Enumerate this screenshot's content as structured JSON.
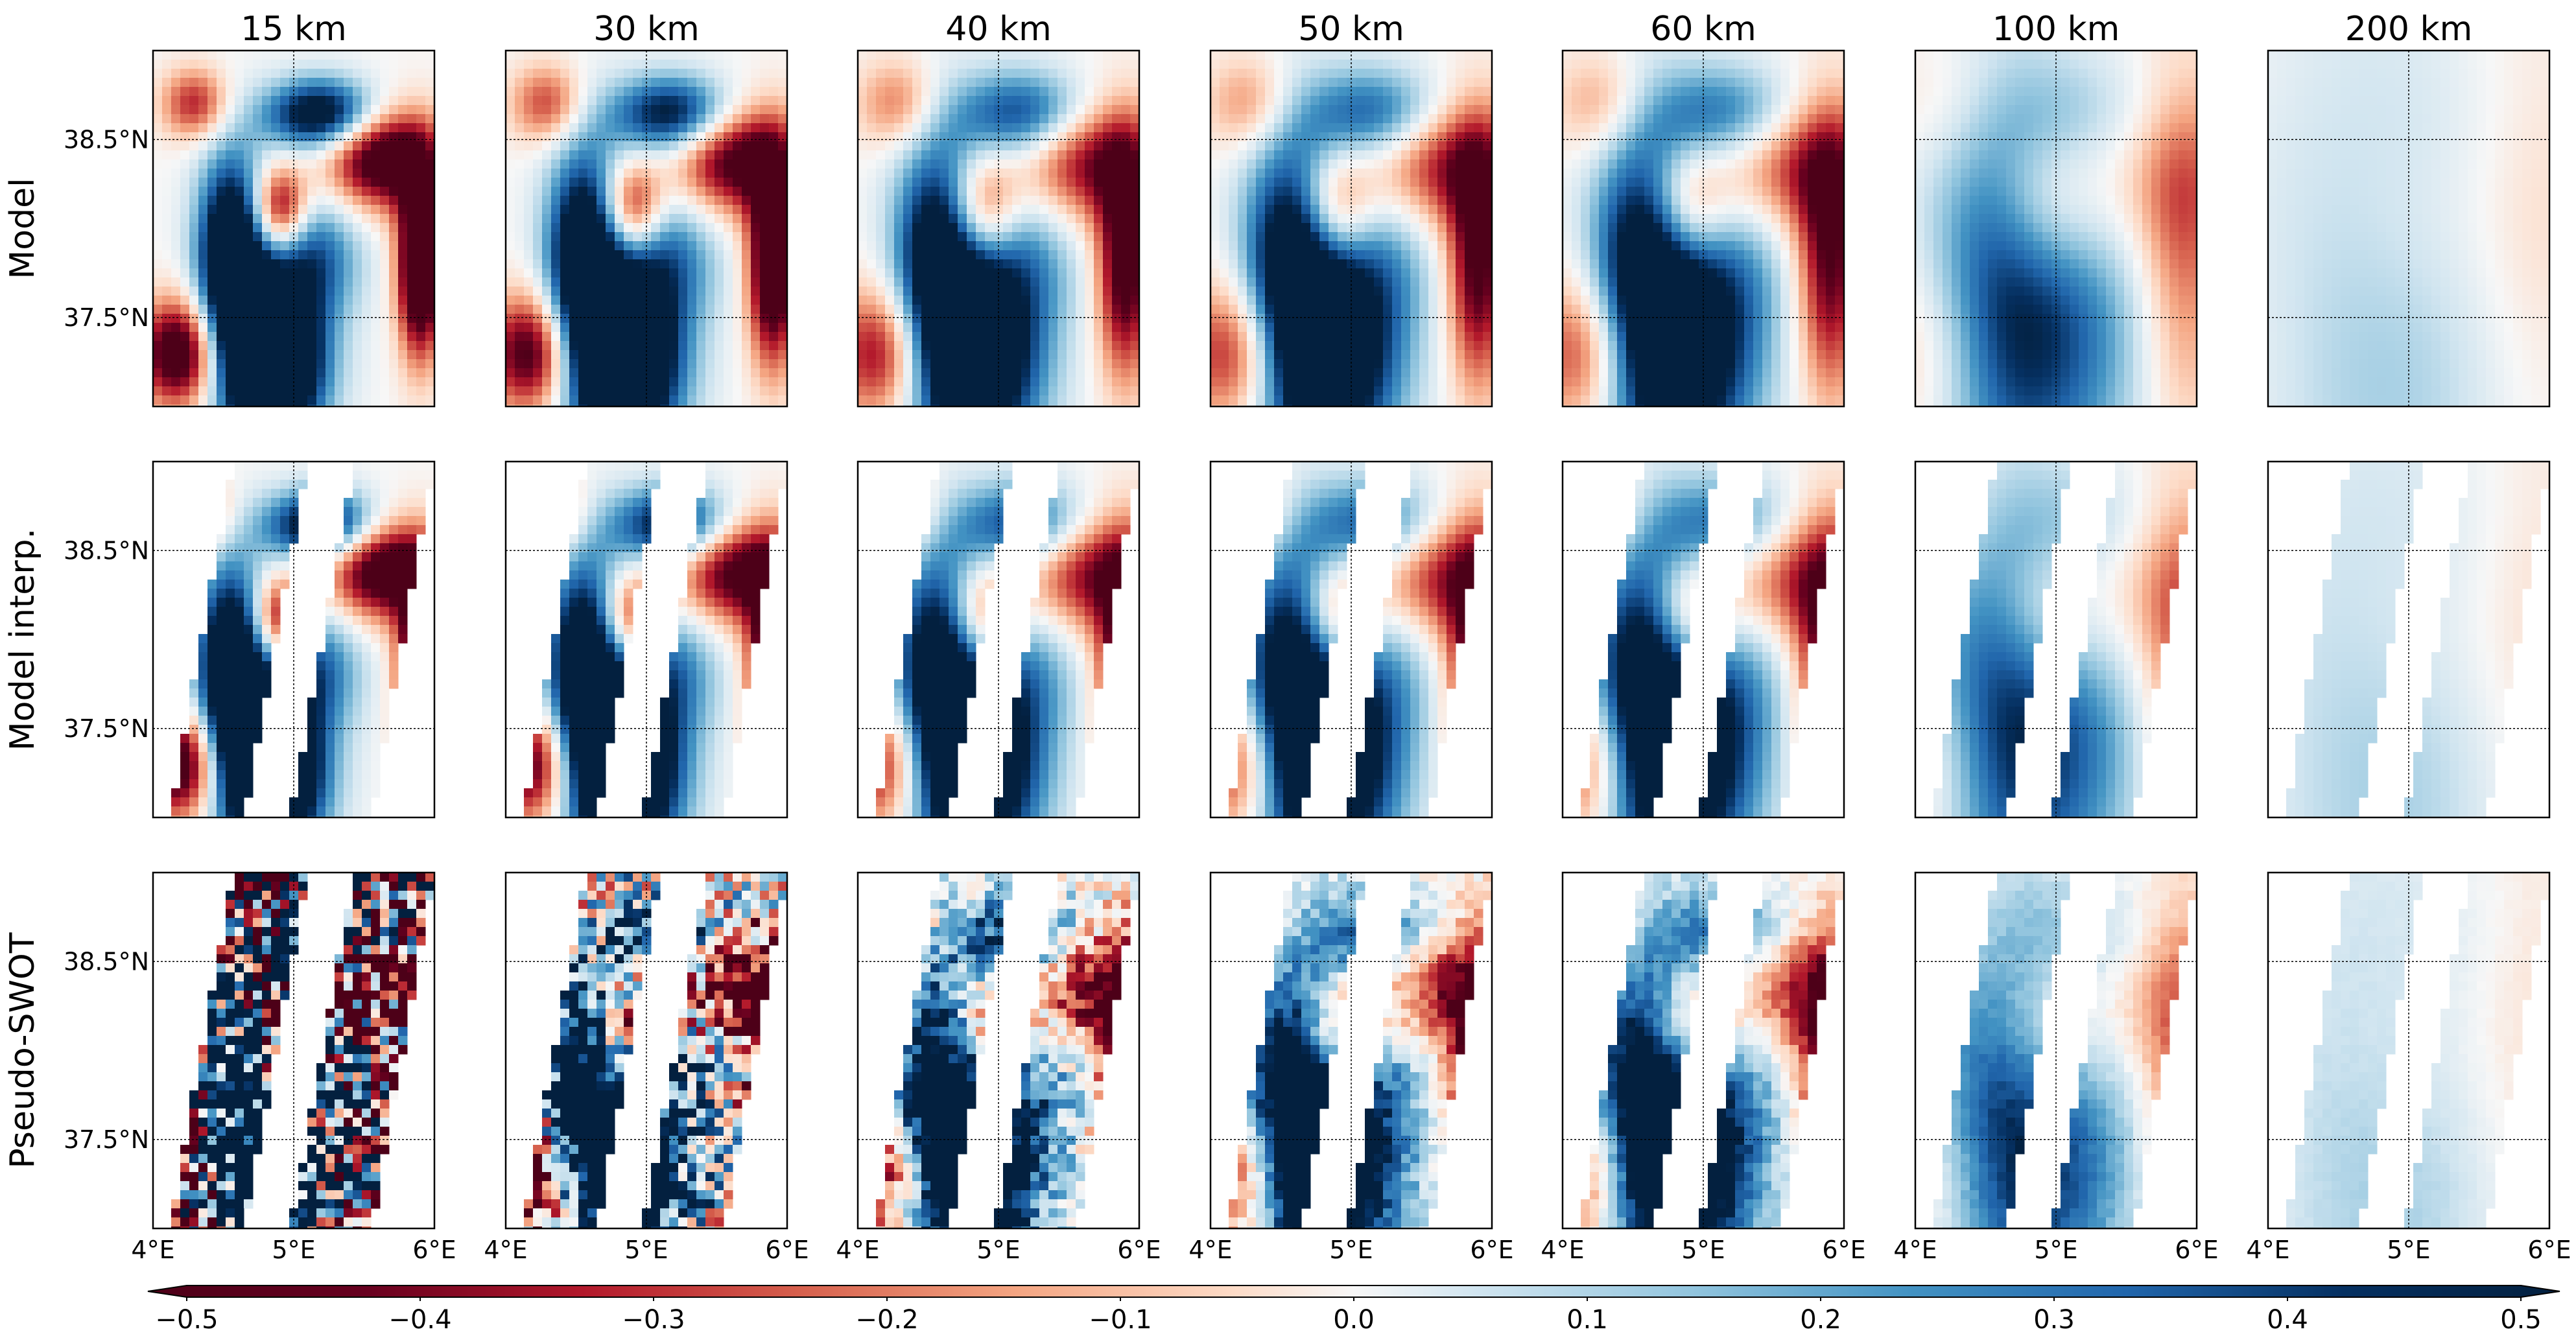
{
  "chart_data": {
    "type": "heatmap",
    "description_rows": [
      "Model",
      "Model interp.",
      "Pseudo-SWOT"
    ],
    "columns": [
      "15 km",
      "30 km",
      "40 km",
      "50 km",
      "60 km",
      "100 km",
      "200 km"
    ],
    "y_ticks": [
      "38.5°N",
      "37.5°N"
    ],
    "x_ticks": [
      "4°E",
      "5°E",
      "6°E"
    ],
    "xlim_deg_e": [
      4,
      6
    ],
    "ylim_deg_n": [
      37.0,
      39.0
    ],
    "gridlines": {
      "lon": [
        5
      ],
      "lat": [
        37.5,
        38.5
      ]
    },
    "colorbar": {
      "ticks": [
        "−0.5",
        "−0.4",
        "−0.3",
        "−0.2",
        "−0.1",
        "0.0",
        "0.1",
        "0.2",
        "0.3",
        "0.4",
        "0.5"
      ],
      "range": [
        -0.55,
        0.55
      ],
      "colormap": "RdBu (red negative, blue positive)",
      "extend": "both",
      "colors": [
        "#67001f",
        "#b2182b",
        "#d6604d",
        "#f4a582",
        "#fddbc7",
        "#f7f7f7",
        "#d1e5f0",
        "#92c5de",
        "#4393c3",
        "#2166ac",
        "#053061"
      ]
    },
    "swath_mask_rows": [
      "Model interp.",
      "Pseudo-SWOT"
    ]
  }
}
